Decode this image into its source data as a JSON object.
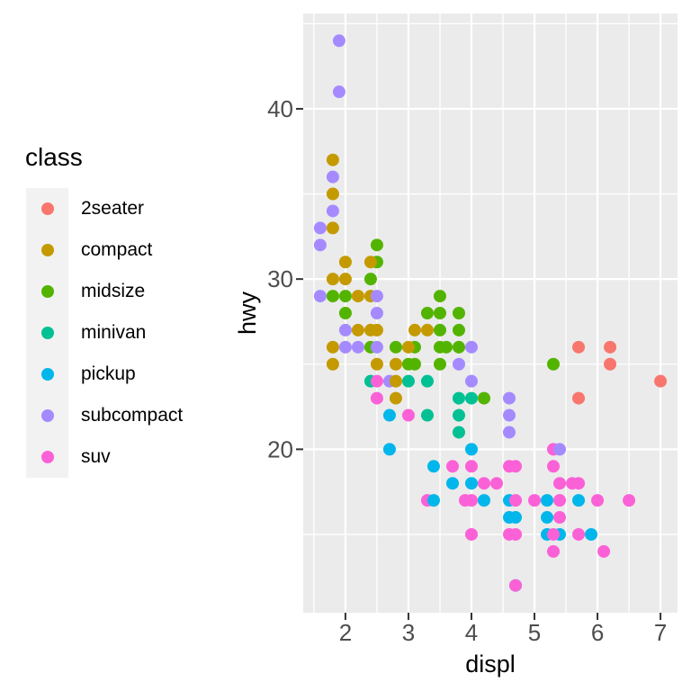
{
  "chart_data": {
    "type": "scatter",
    "title": "",
    "xlabel": "displ",
    "ylabel": "hwy",
    "legend_title": "class",
    "xlim": [
      1.33,
      7.27
    ],
    "ylim": [
      10.4,
      45.6
    ],
    "x_ticks": [
      2,
      3,
      4,
      5,
      6,
      7
    ],
    "y_ticks": [
      20,
      30,
      40
    ],
    "x_minor": [
      1.5,
      2.5,
      3.5,
      4.5,
      5.5,
      6.5
    ],
    "y_minor": [
      15,
      25,
      35,
      45
    ],
    "grid": "on",
    "legend_position": "left",
    "point_radius": 7,
    "classes": [
      {
        "name": "2seater",
        "color": "#F8766D"
      },
      {
        "name": "compact",
        "color": "#C49A00"
      },
      {
        "name": "midsize",
        "color": "#53B400"
      },
      {
        "name": "minivan",
        "color": "#00C094"
      },
      {
        "name": "pickup",
        "color": "#00B6EB"
      },
      {
        "name": "subcompact",
        "color": "#A58AFF"
      },
      {
        "name": "suv",
        "color": "#FB61D7"
      }
    ],
    "points": [
      [
        5.7,
        26,
        "2seater"
      ],
      [
        5.7,
        23,
        "2seater"
      ],
      [
        6.2,
        26,
        "2seater"
      ],
      [
        6.2,
        25,
        "2seater"
      ],
      [
        7.0,
        24,
        "2seater"
      ],
      [
        2.7,
        24,
        "subcompact"
      ],
      [
        2.4,
        24,
        "minivan"
      ],
      [
        3.0,
        24,
        "minivan"
      ],
      [
        3.3,
        24,
        "minivan"
      ],
      [
        3.3,
        22,
        "minivan"
      ],
      [
        3.8,
        23,
        "minivan"
      ],
      [
        3.8,
        22,
        "minivan"
      ],
      [
        3.8,
        21,
        "minivan"
      ],
      [
        4.0,
        23,
        "minivan"
      ],
      [
        1.8,
        29,
        "midsize"
      ],
      [
        2.0,
        29,
        "midsize"
      ],
      [
        2.0,
        28,
        "midsize"
      ],
      [
        2.4,
        30,
        "midsize"
      ],
      [
        2.4,
        26,
        "midsize"
      ],
      [
        2.5,
        32,
        "midsize"
      ],
      [
        2.5,
        31,
        "midsize"
      ],
      [
        2.8,
        26,
        "midsize"
      ],
      [
        3.0,
        25,
        "midsize"
      ],
      [
        3.1,
        25,
        "midsize"
      ],
      [
        3.1,
        26,
        "midsize"
      ],
      [
        3.3,
        28,
        "midsize"
      ],
      [
        3.5,
        29,
        "midsize"
      ],
      [
        3.5,
        28,
        "midsize"
      ],
      [
        3.5,
        27,
        "midsize"
      ],
      [
        3.5,
        26,
        "midsize"
      ],
      [
        3.5,
        25,
        "midsize"
      ],
      [
        3.6,
        26,
        "midsize"
      ],
      [
        3.8,
        28,
        "midsize"
      ],
      [
        3.8,
        27,
        "midsize"
      ],
      [
        3.8,
        26,
        "midsize"
      ],
      [
        4.2,
        23,
        "midsize"
      ],
      [
        5.3,
        25,
        "midsize"
      ],
      [
        1.8,
        37,
        "compact"
      ],
      [
        1.8,
        35,
        "compact"
      ],
      [
        1.8,
        33,
        "compact"
      ],
      [
        1.8,
        30,
        "compact"
      ],
      [
        1.8,
        26,
        "compact"
      ],
      [
        1.8,
        25,
        "compact"
      ],
      [
        2.0,
        31,
        "compact"
      ],
      [
        2.0,
        30,
        "compact"
      ],
      [
        2.2,
        29,
        "compact"
      ],
      [
        2.2,
        27,
        "compact"
      ],
      [
        2.4,
        31,
        "compact"
      ],
      [
        2.4,
        29,
        "compact"
      ],
      [
        2.4,
        27,
        "compact"
      ],
      [
        2.5,
        27,
        "compact"
      ],
      [
        2.5,
        25,
        "compact"
      ],
      [
        2.8,
        25,
        "compact"
      ],
      [
        2.8,
        24,
        "compact"
      ],
      [
        2.8,
        23,
        "compact"
      ],
      [
        3.0,
        26,
        "compact"
      ],
      [
        3.1,
        27,
        "compact"
      ],
      [
        3.3,
        27,
        "compact"
      ],
      [
        3.3,
        17,
        "suv"
      ],
      [
        5.3,
        20,
        "suv"
      ],
      [
        2.7,
        22,
        "pickup"
      ],
      [
        2.7,
        20,
        "pickup"
      ],
      [
        3.4,
        19,
        "pickup"
      ],
      [
        3.4,
        17,
        "pickup"
      ],
      [
        3.7,
        18,
        "pickup"
      ],
      [
        4.0,
        20,
        "pickup"
      ],
      [
        4.0,
        18,
        "pickup"
      ],
      [
        4.2,
        17,
        "pickup"
      ],
      [
        4.6,
        17,
        "pickup"
      ],
      [
        4.6,
        16,
        "pickup"
      ],
      [
        4.7,
        16,
        "pickup"
      ],
      [
        4.7,
        12,
        "pickup"
      ],
      [
        5.2,
        17,
        "pickup"
      ],
      [
        5.2,
        16,
        "pickup"
      ],
      [
        5.2,
        15,
        "pickup"
      ],
      [
        5.4,
        15,
        "pickup"
      ],
      [
        5.7,
        17,
        "pickup"
      ],
      [
        5.9,
        15,
        "pickup"
      ],
      [
        1.9,
        44,
        "subcompact"
      ],
      [
        1.9,
        41,
        "subcompact"
      ],
      [
        1.6,
        33,
        "subcompact"
      ],
      [
        1.6,
        32,
        "subcompact"
      ],
      [
        1.6,
        29,
        "subcompact"
      ],
      [
        1.8,
        36,
        "subcompact"
      ],
      [
        1.8,
        34,
        "subcompact"
      ],
      [
        2.0,
        27,
        "subcompact"
      ],
      [
        2.0,
        26,
        "subcompact"
      ],
      [
        2.2,
        26,
        "subcompact"
      ],
      [
        2.5,
        26,
        "subcompact"
      ],
      [
        2.5,
        28,
        "subcompact"
      ],
      [
        2.5,
        29,
        "subcompact"
      ],
      [
        3.8,
        25,
        "subcompact"
      ],
      [
        4.0,
        26,
        "subcompact"
      ],
      [
        4.0,
        24,
        "subcompact"
      ],
      [
        4.6,
        23,
        "subcompact"
      ],
      [
        4.6,
        22,
        "subcompact"
      ],
      [
        4.6,
        21,
        "subcompact"
      ],
      [
        5.4,
        20,
        "subcompact"
      ],
      [
        2.5,
        24,
        "suv"
      ],
      [
        2.5,
        23,
        "suv"
      ],
      [
        3.0,
        22,
        "suv"
      ],
      [
        3.7,
        19,
        "suv"
      ],
      [
        3.9,
        17,
        "suv"
      ],
      [
        4.0,
        19,
        "suv"
      ],
      [
        4.0,
        17,
        "suv"
      ],
      [
        4.0,
        15,
        "suv"
      ],
      [
        4.2,
        18,
        "suv"
      ],
      [
        4.4,
        18,
        "suv"
      ],
      [
        4.6,
        19,
        "suv"
      ],
      [
        4.6,
        15,
        "suv"
      ],
      [
        4.7,
        19,
        "suv"
      ],
      [
        4.7,
        17,
        "suv"
      ],
      [
        4.7,
        15,
        "suv"
      ],
      [
        4.7,
        12,
        "suv"
      ],
      [
        5.0,
        17,
        "suv"
      ],
      [
        5.3,
        19,
        "suv"
      ],
      [
        5.3,
        15,
        "suv"
      ],
      [
        5.3,
        14,
        "suv"
      ],
      [
        5.4,
        18,
        "suv"
      ],
      [
        5.4,
        17,
        "suv"
      ],
      [
        5.4,
        16,
        "suv"
      ],
      [
        5.6,
        18,
        "suv"
      ],
      [
        5.7,
        18,
        "suv"
      ],
      [
        5.7,
        15,
        "suv"
      ],
      [
        6.0,
        17,
        "suv"
      ],
      [
        6.1,
        14,
        "suv"
      ],
      [
        6.5,
        17,
        "suv"
      ]
    ]
  },
  "layout_colors": {
    "panel_bg": "#EBEBEB",
    "grid_major": "#FFFFFF",
    "grid_minor": "#FFFFFF",
    "tick_mark": "#333333",
    "tick_label": "#4D4D4D",
    "axis_title": "#000000",
    "legend_key_bg": "#F2F2F2",
    "figure_bg": "#FFFFFF"
  }
}
